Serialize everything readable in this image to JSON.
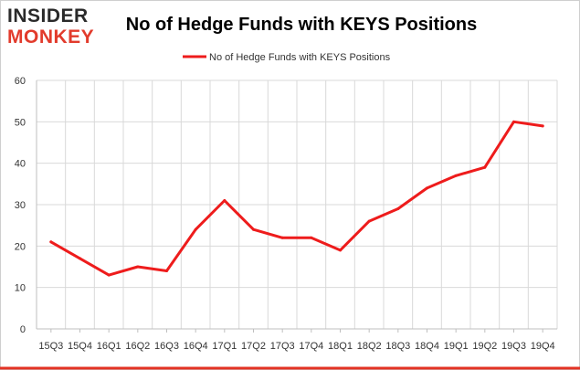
{
  "logo": {
    "line1": "INSIDER",
    "line2": "MONKEY"
  },
  "colors": {
    "series": "#ee1c1c",
    "grid": "#d9d9d9",
    "axis": "#bfbfbf",
    "frame_bottom": "#e33324",
    "logo_red": "#e23b2c"
  },
  "chart_data": {
    "type": "line",
    "title": "No of Hedge Funds with KEYS Positions",
    "xlabel": "",
    "ylabel": "",
    "ylim": [
      0,
      60
    ],
    "yticks": [
      0,
      10,
      20,
      30,
      40,
      50,
      60
    ],
    "grid": true,
    "legend_position": "top-center",
    "categories": [
      "15Q3",
      "15Q4",
      "16Q1",
      "16Q2",
      "16Q3",
      "16Q4",
      "17Q1",
      "17Q2",
      "17Q3",
      "17Q4",
      "18Q1",
      "18Q2",
      "18Q3",
      "18Q4",
      "19Q1",
      "19Q2",
      "19Q3",
      "19Q4"
    ],
    "series": [
      {
        "name": "No of Hedge Funds with KEYS Positions",
        "values": [
          21,
          17,
          13,
          15,
          14,
          24,
          31,
          24,
          22,
          22,
          19,
          26,
          29,
          34,
          37,
          39,
          50,
          49
        ]
      }
    ]
  }
}
